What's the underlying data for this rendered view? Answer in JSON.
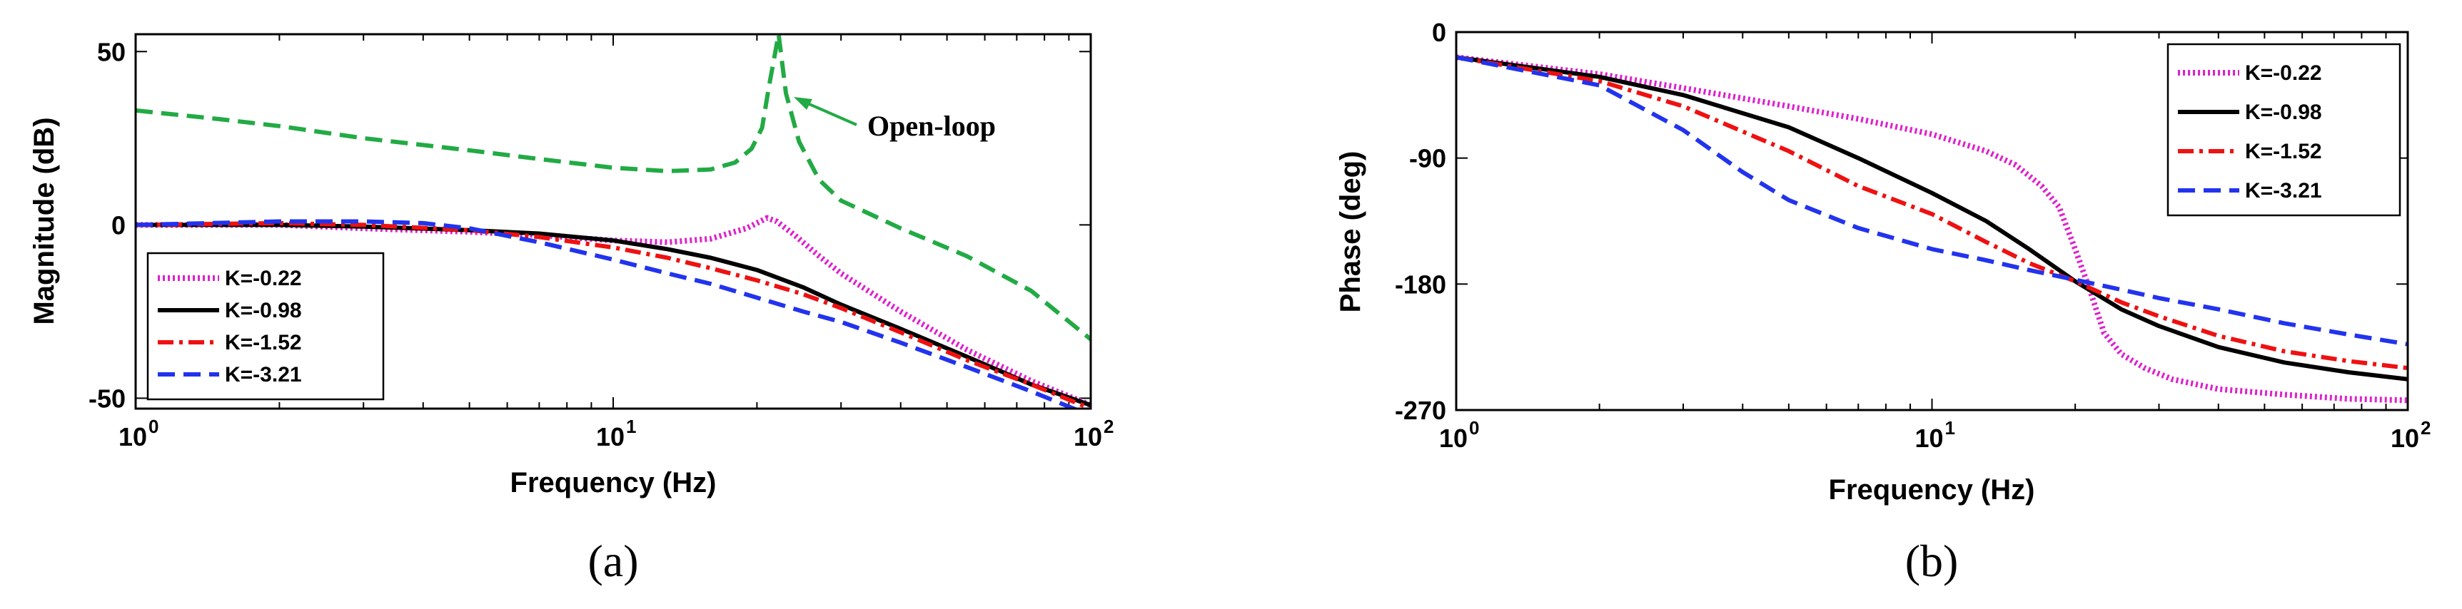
{
  "chart_data": [
    {
      "type": "line",
      "panel": "(a)",
      "xscale": "log",
      "xlim": [
        1,
        100
      ],
      "ylim": [
        -53,
        55
      ],
      "xlabel": "Frequency  (Hz)",
      "ylabel": "Magnitude (dB)",
      "ytick_values": [
        50,
        0,
        -50
      ],
      "ytick_labels": [
        "50",
        "0",
        "-50"
      ],
      "xtick_values": [
        1,
        10,
        100
      ],
      "xtick_labels": [
        [
          "10",
          "0"
        ],
        [
          "10",
          "1"
        ],
        [
          "10",
          "2"
        ]
      ],
      "legend_position": "lower-left",
      "annotation": {
        "text": "Open-loop",
        "target": [
          23,
          38
        ],
        "arrow_color": "#22aa44"
      },
      "series": [
        {
          "name": "Open-loop",
          "color": "#22aa44",
          "dash": "dashed",
          "legend": false,
          "x": [
            1,
            1.5,
            2,
            3,
            5,
            7,
            10,
            13,
            16,
            18,
            19.5,
            20.5,
            21.2,
            22.2,
            23,
            24.5,
            27,
            30,
            40,
            55,
            75,
            100
          ],
          "y": [
            33,
            30.5,
            28.5,
            25,
            21.5,
            19,
            16.5,
            15.5,
            16,
            18,
            22,
            28,
            40,
            55,
            38,
            24,
            13,
            7,
            -1,
            -9,
            -19,
            -33
          ]
        },
        {
          "name": "K=-0.22",
          "color": "#dd22cc",
          "dash": "dotted",
          "legend": true,
          "x": [
            1,
            2,
            3,
            5,
            7,
            10,
            13,
            16,
            19,
            21,
            22,
            24,
            27,
            30,
            40,
            55,
            75,
            100
          ],
          "y": [
            0,
            0,
            -1,
            -2,
            -3,
            -4.5,
            -5,
            -4,
            -1,
            2,
            1,
            -3,
            -9,
            -14,
            -25,
            -36,
            -45,
            -52
          ]
        },
        {
          "name": "K=-0.98",
          "color": "#000000",
          "dash": "solid",
          "legend": true,
          "x": [
            1,
            2,
            3,
            5,
            7,
            10,
            13,
            16,
            20,
            25,
            30,
            40,
            55,
            75,
            100
          ],
          "y": [
            0,
            0,
            -0.5,
            -1.5,
            -2.5,
            -4.5,
            -7,
            -9.5,
            -13,
            -18,
            -23,
            -30,
            -38,
            -46,
            -52
          ]
        },
        {
          "name": "K=-1.52",
          "color": "#ee1111",
          "dash": "dashdot",
          "legend": true,
          "x": [
            1,
            2,
            3,
            5,
            7,
            10,
            13,
            16,
            20,
            25,
            30,
            40,
            55,
            75,
            100
          ],
          "y": [
            0,
            0.5,
            0,
            -1.5,
            -3.5,
            -6.5,
            -9.5,
            -12.5,
            -16,
            -20,
            -24,
            -31,
            -39,
            -46,
            -53
          ]
        },
        {
          "name": "K=-3.21",
          "color": "#2233ee",
          "dash": "dashed",
          "legend": true,
          "x": [
            1,
            2,
            3,
            4,
            5,
            7,
            10,
            13,
            16,
            20,
            25,
            30,
            40,
            55,
            75,
            100
          ],
          "y": [
            0,
            1,
            1,
            0.5,
            -1,
            -5,
            -10,
            -14,
            -17,
            -21,
            -25,
            -28,
            -34,
            -41,
            -48,
            -55
          ]
        }
      ]
    },
    {
      "type": "line",
      "panel": "(b)",
      "xscale": "log",
      "xlim": [
        1,
        100
      ],
      "ylim": [
        -270,
        0
      ],
      "xlabel": "Frequency  (Hz)",
      "ylabel": "Phase (deg)",
      "ytick_values": [
        0,
        -90,
        -180,
        -270
      ],
      "ytick_labels": [
        "0",
        "-90",
        "-180",
        "-270"
      ],
      "xtick_values": [
        1,
        10,
        100
      ],
      "xtick_labels": [
        [
          "10",
          "0"
        ],
        [
          "10",
          "1"
        ],
        [
          "10",
          "2"
        ]
      ],
      "legend_position": "upper-right",
      "series": [
        {
          "name": "K=-0.22",
          "color": "#dd22cc",
          "dash": "dotted",
          "legend": true,
          "x": [
            1,
            2,
            3,
            5,
            7,
            10,
            13,
            15,
            17,
            18.5,
            20,
            21.5,
            23,
            25,
            28,
            32,
            40,
            55,
            75,
            100
          ],
          "y": [
            -18,
            -30,
            -40,
            -53,
            -62,
            -73,
            -85,
            -95,
            -110,
            -125,
            -155,
            -185,
            -215,
            -230,
            -240,
            -248,
            -255,
            -259,
            -262,
            -263
          ]
        },
        {
          "name": "K=-0.98",
          "color": "#000000",
          "dash": "solid",
          "legend": true,
          "x": [
            1,
            2,
            3,
            5,
            7,
            10,
            13,
            16,
            20,
            25,
            30,
            40,
            55,
            75,
            100
          ],
          "y": [
            -18,
            -32,
            -45,
            -68,
            -90,
            -115,
            -135,
            -155,
            -178,
            -198,
            -210,
            -225,
            -236,
            -243,
            -248
          ]
        },
        {
          "name": "K=-1.52",
          "color": "#ee1111",
          "dash": "dashdot",
          "legend": true,
          "x": [
            1,
            2,
            3,
            5,
            7,
            10,
            13,
            16,
            20,
            25,
            30,
            40,
            55,
            75,
            100
          ],
          "y": [
            -18,
            -35,
            -53,
            -85,
            -110,
            -130,
            -150,
            -165,
            -178,
            -193,
            -203,
            -217,
            -228,
            -235,
            -240
          ]
        },
        {
          "name": "K=-3.21",
          "color": "#2233ee",
          "dash": "dashed",
          "legend": true,
          "x": [
            1,
            2,
            3,
            4,
            5,
            7,
            10,
            13,
            16,
            20,
            25,
            30,
            40,
            55,
            75,
            100
          ],
          "y": [
            -18,
            -38,
            -70,
            -100,
            -120,
            -140,
            -155,
            -163,
            -170,
            -177,
            -184,
            -190,
            -198,
            -208,
            -216,
            -223
          ]
        }
      ]
    }
  ],
  "captions": [
    "(a)",
    "(b)"
  ]
}
